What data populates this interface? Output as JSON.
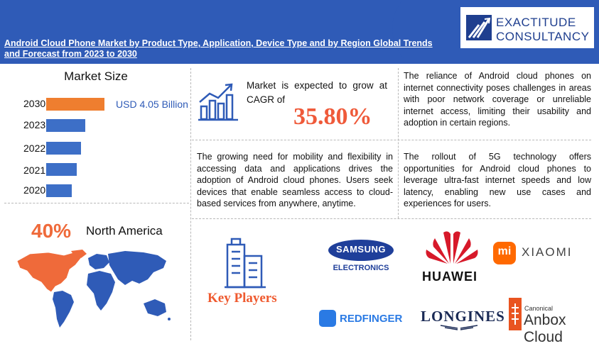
{
  "header": {
    "title": "Android Cloud Phone Market by Product Type, Application, Device Type and by Region Global Trends and Forecast from 2023 to 2030",
    "logo_line1": "EXACTITUDE",
    "logo_line2": "CONSULTANCY"
  },
  "market_size": {
    "title": "Market Size",
    "value_label": "USD 4.05 Billion",
    "bars": [
      {
        "year": "2030",
        "value": 4.05,
        "highlight": true
      },
      {
        "year": "2023",
        "value": 2.7
      },
      {
        "year": "2022",
        "value": 2.4
      },
      {
        "year": "2021",
        "value": 2.1
      },
      {
        "year": "2020",
        "value": 1.8
      }
    ],
    "colors": {
      "highlight": "#ef7e2f",
      "normal": "#3d6fc7"
    }
  },
  "cagr": {
    "text": "Market is expected to grow at CAGR of",
    "value": "35.80%",
    "icon": "growth-chart-icon"
  },
  "paragraphs": {
    "challenge": "The reliance of Android cloud phones on internet connectivity poses challenges in areas with poor network coverage or unreliable internet access, limiting their usability and adoption in certain regions.",
    "driver": "The growing need for mobility and flexibility in accessing data and applications drives the adoption of Android cloud phones. Users seek devices that enable seamless access to cloud-based services from anywhere, anytime.",
    "opportunity": "The rollout of 5G technology offers opportunities for Android cloud phones to leverage ultra-fast internet speeds and low latency, enabling new use cases and experiences for users."
  },
  "region": {
    "percent": "40%",
    "name": "North America",
    "highlight_color": "#ef6a3a",
    "map_color": "#2f5bb7"
  },
  "key_players": {
    "label": "Key Players",
    "icon": "building-icon",
    "logos": {
      "samsung_line1": "SAMSUNG",
      "samsung_line2": "ELECTRONICS",
      "huawei": "HUAWEI",
      "xiaomi_mark": "mi",
      "xiaomi": "XIAOMI",
      "redfinger": "REDFINGER",
      "longines": "LONGINES",
      "anbox_small": "Canonical",
      "anbox": "Anbox Cloud"
    }
  }
}
